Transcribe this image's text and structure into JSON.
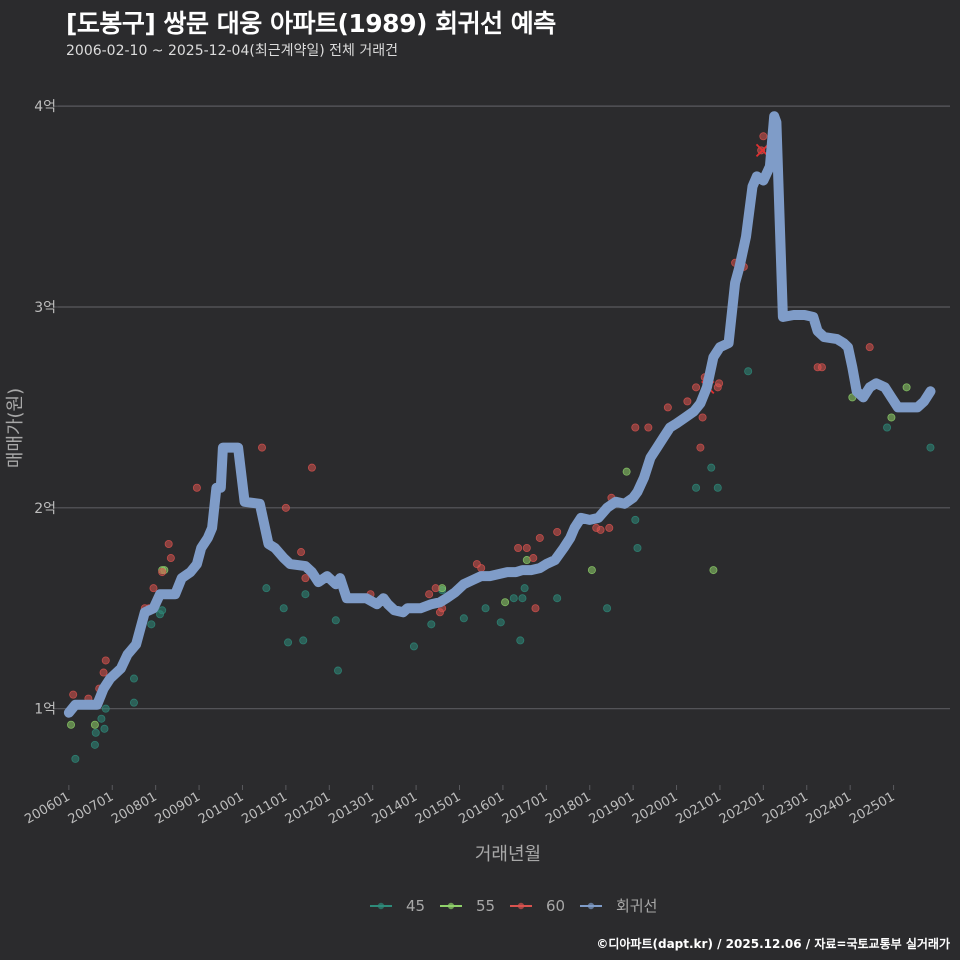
{
  "title": "[도봉구] 쌍문 대웅 아파트(1989) 회귀선 예측",
  "subtitle": "2006-02-10 ~ 2025-12-04(최근계약일) 전체 거래건",
  "caption": "©디아파트(dapt.kr) / 2025.12.06 / 자료=국토교통부 실거래가",
  "colors": {
    "background": "#2b2b2d",
    "grid": "#5a5a5e",
    "axis_text": "#bdbdbd",
    "s45": "#2e8b7a",
    "s55": "#8fd16a",
    "s60": "#d9534f",
    "regression": "#7f9cc8"
  },
  "chart_data": {
    "type": "scatter",
    "xlabel": "거래년월",
    "ylabel": "매매가(원)",
    "xlim": [
      2005.75,
      2026.3
    ],
    "ylim": [
      0.62,
      4.18
    ],
    "y_ticks": [
      {
        "value": 1,
        "label": "1억"
      },
      {
        "value": 2,
        "label": "2억"
      },
      {
        "value": 3,
        "label": "3억"
      },
      {
        "value": 4,
        "label": "4억"
      }
    ],
    "x_ticks": [
      {
        "value": 2006.0,
        "label": "200601"
      },
      {
        "value": 2007.0,
        "label": "200701"
      },
      {
        "value": 2008.0,
        "label": "200801"
      },
      {
        "value": 2009.0,
        "label": "200901"
      },
      {
        "value": 2010.0,
        "label": "201001"
      },
      {
        "value": 2011.0,
        "label": "201101"
      },
      {
        "value": 2012.0,
        "label": "201201"
      },
      {
        "value": 2013.0,
        "label": "201301"
      },
      {
        "value": 2014.0,
        "label": "201401"
      },
      {
        "value": 2015.0,
        "label": "201501"
      },
      {
        "value": 2016.0,
        "label": "201601"
      },
      {
        "value": 2017.0,
        "label": "201701"
      },
      {
        "value": 2018.0,
        "label": "201801"
      },
      {
        "value": 2019.0,
        "label": "201901"
      },
      {
        "value": 2020.0,
        "label": "202001"
      },
      {
        "value": 2021.0,
        "label": "202101"
      },
      {
        "value": 2022.0,
        "label": "202201"
      },
      {
        "value": 2023.0,
        "label": "202301"
      },
      {
        "value": 2024.0,
        "label": "202401"
      },
      {
        "value": 2025.0,
        "label": "202501"
      }
    ],
    "legend": {
      "placement": "bottom",
      "items": [
        {
          "key": "s45",
          "label": "45"
        },
        {
          "key": "s55",
          "label": "55"
        },
        {
          "key": "s60",
          "label": "60"
        },
        {
          "key": "regression",
          "label": "회귀선"
        }
      ]
    },
    "series": [
      {
        "name": "45",
        "key": "s45",
        "points": [
          [
            2006.15,
            0.75
          ],
          [
            2006.6,
            0.82
          ],
          [
            2006.62,
            0.88
          ],
          [
            2006.75,
            0.95
          ],
          [
            2006.85,
            1.0
          ],
          [
            2006.82,
            0.9
          ],
          [
            2007.5,
            1.03
          ],
          [
            2007.5,
            1.15
          ],
          [
            2007.9,
            1.42
          ],
          [
            2008.1,
            1.47
          ],
          [
            2008.15,
            1.49
          ],
          [
            2010.55,
            1.6
          ],
          [
            2010.95,
            1.5
          ],
          [
            2011.05,
            1.33
          ],
          [
            2011.4,
            1.34
          ],
          [
            2011.45,
            1.57
          ],
          [
            2012.15,
            1.44
          ],
          [
            2012.2,
            1.19
          ],
          [
            2013.95,
            1.31
          ],
          [
            2014.35,
            1.42
          ],
          [
            2014.6,
            1.59
          ],
          [
            2015.1,
            1.45
          ],
          [
            2015.6,
            1.5
          ],
          [
            2015.95,
            1.43
          ],
          [
            2016.25,
            1.55
          ],
          [
            2016.45,
            1.55
          ],
          [
            2016.4,
            1.34
          ],
          [
            2016.5,
            1.6
          ],
          [
            2017.25,
            1.55
          ],
          [
            2018.4,
            1.5
          ],
          [
            2019.05,
            1.94
          ],
          [
            2019.1,
            1.8
          ],
          [
            2020.45,
            2.1
          ],
          [
            2020.8,
            2.2
          ],
          [
            2020.95,
            2.1
          ],
          [
            2021.65,
            2.68
          ],
          [
            2024.85,
            2.4
          ],
          [
            2025.85,
            2.3
          ]
        ]
      },
      {
        "name": "55",
        "key": "s55",
        "points": [
          [
            2006.05,
            0.92
          ],
          [
            2006.6,
            0.92
          ],
          [
            2006.75,
            1.06
          ],
          [
            2008.15,
            1.69
          ],
          [
            2008.2,
            1.69
          ],
          [
            2014.6,
            1.6
          ],
          [
            2016.05,
            1.53
          ],
          [
            2016.55,
            1.74
          ],
          [
            2018.05,
            1.69
          ],
          [
            2018.85,
            2.18
          ],
          [
            2020.85,
            1.69
          ],
          [
            2024.05,
            2.55
          ],
          [
            2024.95,
            2.45
          ],
          [
            2025.3,
            2.6
          ]
        ]
      },
      {
        "name": "60",
        "key": "s60",
        "points": [
          [
            2006.1,
            1.07
          ],
          [
            2006.45,
            1.05
          ],
          [
            2006.7,
            1.1
          ],
          [
            2006.8,
            1.18
          ],
          [
            2006.85,
            1.24
          ],
          [
            2007.75,
            1.5
          ],
          [
            2007.85,
            1.5
          ],
          [
            2007.95,
            1.6
          ],
          [
            2008.15,
            1.68
          ],
          [
            2008.3,
            1.82
          ],
          [
            2008.35,
            1.75
          ],
          [
            2008.95,
            2.1
          ],
          [
            2010.45,
            2.3
          ],
          [
            2011.0,
            2.0
          ],
          [
            2011.35,
            1.78
          ],
          [
            2011.45,
            1.65
          ],
          [
            2011.6,
            2.2
          ],
          [
            2012.95,
            1.57
          ],
          [
            2014.3,
            1.57
          ],
          [
            2014.45,
            1.6
          ],
          [
            2014.55,
            1.48
          ],
          [
            2014.6,
            1.5
          ],
          [
            2015.4,
            1.72
          ],
          [
            2015.5,
            1.7
          ],
          [
            2016.35,
            1.8
          ],
          [
            2016.55,
            1.8
          ],
          [
            2016.7,
            1.75
          ],
          [
            2016.75,
            1.5
          ],
          [
            2016.85,
            1.85
          ],
          [
            2017.25,
            1.88
          ],
          [
            2018.15,
            1.9
          ],
          [
            2018.25,
            1.89
          ],
          [
            2018.45,
            1.9
          ],
          [
            2018.5,
            2.05
          ],
          [
            2019.05,
            2.4
          ],
          [
            2019.35,
            2.4
          ],
          [
            2019.8,
            2.5
          ],
          [
            2020.25,
            2.53
          ],
          [
            2020.45,
            2.6
          ],
          [
            2020.55,
            2.3
          ],
          [
            2020.6,
            2.45
          ],
          [
            2020.65,
            2.65
          ],
          [
            2020.7,
            2.64
          ],
          [
            2020.95,
            2.6
          ],
          [
            2020.98,
            2.62
          ],
          [
            2021.35,
            3.22
          ],
          [
            2021.55,
            3.2
          ],
          [
            2021.95,
            3.78
          ],
          [
            2022.0,
            3.85
          ],
          [
            2023.25,
            2.7
          ],
          [
            2023.35,
            2.7
          ],
          [
            2024.45,
            2.8
          ]
        ]
      }
    ],
    "outliers": [
      {
        "series": "60",
        "x": 2020.72,
        "y": 2.6
      },
      {
        "series": "60",
        "x": 2021.98,
        "y": 3.78
      }
    ],
    "regression_line": [
      [
        2006.0,
        0.98
      ],
      [
        2006.15,
        1.02
      ],
      [
        2006.5,
        1.02
      ],
      [
        2006.65,
        1.02
      ],
      [
        2006.8,
        1.1
      ],
      [
        2006.95,
        1.15
      ],
      [
        2007.2,
        1.2
      ],
      [
        2007.35,
        1.27
      ],
      [
        2007.55,
        1.32
      ],
      [
        2007.75,
        1.48
      ],
      [
        2007.95,
        1.5
      ],
      [
        2008.1,
        1.57
      ],
      [
        2008.45,
        1.57
      ],
      [
        2008.6,
        1.65
      ],
      [
        2008.8,
        1.68
      ],
      [
        2008.95,
        1.72
      ],
      [
        2009.05,
        1.8
      ],
      [
        2009.2,
        1.85
      ],
      [
        2009.3,
        1.9
      ],
      [
        2009.4,
        2.1
      ],
      [
        2009.5,
        2.1
      ],
      [
        2009.55,
        2.3
      ],
      [
        2009.9,
        2.3
      ],
      [
        2010.05,
        2.03
      ],
      [
        2010.4,
        2.02
      ],
      [
        2010.6,
        1.82
      ],
      [
        2010.75,
        1.8
      ],
      [
        2010.95,
        1.75
      ],
      [
        2011.1,
        1.72
      ],
      [
        2011.45,
        1.71
      ],
      [
        2011.6,
        1.68
      ],
      [
        2011.75,
        1.63
      ],
      [
        2011.95,
        1.66
      ],
      [
        2012.15,
        1.62
      ],
      [
        2012.25,
        1.65
      ],
      [
        2012.4,
        1.55
      ],
      [
        2012.85,
        1.55
      ],
      [
        2013.1,
        1.52
      ],
      [
        2013.25,
        1.55
      ],
      [
        2013.35,
        1.52
      ],
      [
        2013.5,
        1.49
      ],
      [
        2013.7,
        1.48
      ],
      [
        2013.8,
        1.5
      ],
      [
        2014.1,
        1.5
      ],
      [
        2014.35,
        1.52
      ],
      [
        2014.55,
        1.53
      ],
      [
        2014.7,
        1.55
      ],
      [
        2014.9,
        1.58
      ],
      [
        2015.1,
        1.62
      ],
      [
        2015.3,
        1.64
      ],
      [
        2015.5,
        1.66
      ],
      [
        2015.7,
        1.66
      ],
      [
        2015.9,
        1.67
      ],
      [
        2016.1,
        1.68
      ],
      [
        2016.3,
        1.68
      ],
      [
        2016.45,
        1.69
      ],
      [
        2016.65,
        1.69
      ],
      [
        2016.85,
        1.7
      ],
      [
        2017.0,
        1.72
      ],
      [
        2017.2,
        1.74
      ],
      [
        2017.4,
        1.8
      ],
      [
        2017.55,
        1.85
      ],
      [
        2017.65,
        1.9
      ],
      [
        2017.8,
        1.95
      ],
      [
        2018.0,
        1.94
      ],
      [
        2018.2,
        1.95
      ],
      [
        2018.4,
        2.0
      ],
      [
        2018.6,
        2.03
      ],
      [
        2018.8,
        2.02
      ],
      [
        2019.0,
        2.05
      ],
      [
        2019.1,
        2.08
      ],
      [
        2019.25,
        2.15
      ],
      [
        2019.4,
        2.25
      ],
      [
        2019.55,
        2.3
      ],
      [
        2019.7,
        2.35
      ],
      [
        2019.85,
        2.4
      ],
      [
        2020.0,
        2.42
      ],
      [
        2020.2,
        2.45
      ],
      [
        2020.4,
        2.48
      ],
      [
        2020.55,
        2.52
      ],
      [
        2020.7,
        2.6
      ],
      [
        2020.85,
        2.75
      ],
      [
        2021.0,
        2.8
      ],
      [
        2021.2,
        2.82
      ],
      [
        2021.35,
        3.12
      ],
      [
        2021.45,
        3.2
      ],
      [
        2021.6,
        3.35
      ],
      [
        2021.75,
        3.6
      ],
      [
        2021.85,
        3.65
      ],
      [
        2022.0,
        3.63
      ],
      [
        2022.15,
        3.7
      ],
      [
        2022.25,
        3.95
      ],
      [
        2022.3,
        3.92
      ],
      [
        2022.45,
        2.95
      ],
      [
        2022.7,
        2.96
      ],
      [
        2022.95,
        2.96
      ],
      [
        2023.15,
        2.95
      ],
      [
        2023.25,
        2.88
      ],
      [
        2023.4,
        2.85
      ],
      [
        2023.7,
        2.84
      ],
      [
        2023.85,
        2.82
      ],
      [
        2023.95,
        2.8
      ],
      [
        2024.05,
        2.7
      ],
      [
        2024.15,
        2.58
      ],
      [
        2024.3,
        2.55
      ],
      [
        2024.45,
        2.6
      ],
      [
        2024.6,
        2.62
      ],
      [
        2024.8,
        2.6
      ],
      [
        2024.95,
        2.55
      ],
      [
        2025.1,
        2.5
      ],
      [
        2025.3,
        2.5
      ],
      [
        2025.55,
        2.5
      ],
      [
        2025.7,
        2.53
      ],
      [
        2025.85,
        2.58
      ]
    ]
  }
}
